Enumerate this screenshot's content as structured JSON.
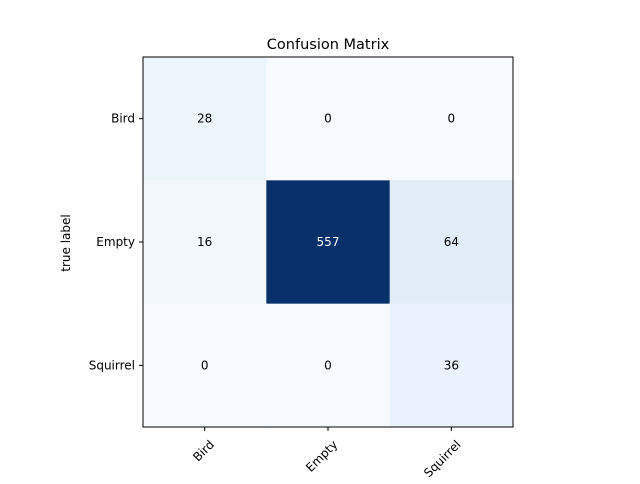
{
  "chart_data": {
    "type": "heatmap",
    "title": "Confusion Matrix",
    "ylabel": "true label",
    "xlabel": "",
    "x_categories": [
      "Bird",
      "Empty",
      "Squirrel"
    ],
    "y_categories": [
      "Bird",
      "Empty",
      "Squirrel"
    ],
    "matrix": [
      [
        28,
        0,
        0
      ],
      [
        16,
        557,
        64
      ],
      [
        0,
        0,
        36
      ]
    ],
    "colormap": "Blues",
    "value_range": [
      0,
      557
    ],
    "grid": false,
    "colors": {
      "low": "#f7fbff",
      "high": "#08306b",
      "text_dark": "#000000",
      "text_light": "#ffffff"
    }
  }
}
